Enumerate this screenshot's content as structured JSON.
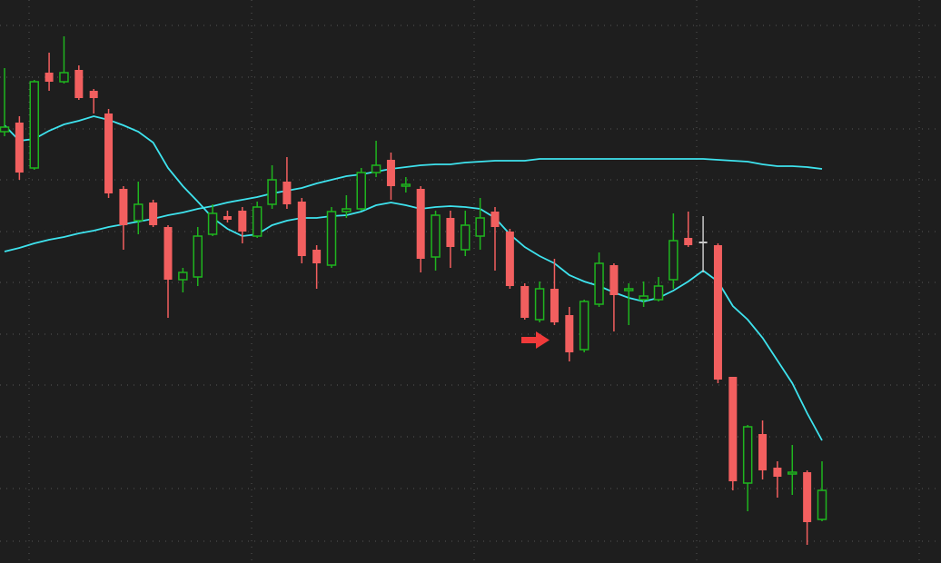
{
  "chart_data": {
    "type": "candlestick",
    "categories": [
      null,
      null,
      null,
      null,
      null,
      null,
      null,
      null,
      null,
      null,
      null,
      null,
      null,
      null,
      null,
      null,
      null,
      null,
      null,
      null,
      null,
      null,
      null,
      null,
      null,
      null,
      null,
      null,
      null,
      null,
      null,
      null,
      null,
      null,
      null,
      null,
      null,
      null,
      null,
      null,
      null,
      null,
      null,
      null,
      null,
      null,
      null,
      null,
      null,
      null,
      null,
      null,
      null,
      null,
      null,
      null
    ],
    "open": [
      475,
      485,
      435,
      540,
      530,
      543,
      520,
      495,
      412,
      377,
      397,
      370,
      312,
      315,
      362,
      382,
      388,
      360,
      395,
      420,
      398,
      345,
      328,
      387,
      390,
      430,
      444,
      415,
      412,
      337,
      380,
      345,
      360,
      387,
      365,
      305,
      268,
      302,
      273,
      235,
      285,
      328,
      300,
      290,
      290,
      312,
      358,
      354,
      350,
      205,
      88,
      142,
      105,
      98,
      100,
      48
    ],
    "high": [
      545,
      492,
      532,
      562,
      580,
      548,
      522,
      500,
      415,
      420,
      400,
      372,
      325,
      370,
      395,
      388,
      392,
      398,
      438,
      447,
      402,
      350,
      392,
      405,
      435,
      465,
      452,
      425,
      415,
      388,
      388,
      388,
      402,
      392,
      368,
      308,
      310,
      335,
      282,
      290,
      342,
      330,
      308,
      310,
      315,
      385,
      387,
      382,
      352,
      205,
      152,
      157,
      112,
      130,
      102,
      112
    ],
    "low": [
      470,
      422,
      433,
      520,
      528,
      510,
      495,
      402,
      345,
      362,
      370,
      270,
      298,
      305,
      360,
      375,
      352,
      358,
      390,
      390,
      330,
      302,
      325,
      380,
      388,
      425,
      400,
      408,
      320,
      322,
      325,
      338,
      345,
      322,
      302,
      268,
      265,
      262,
      222,
      232,
      282,
      255,
      262,
      282,
      288,
      302,
      348,
      320,
      198,
      80,
      57,
      92,
      72,
      75,
      20,
      46
    ],
    "close": [
      480,
      430,
      530,
      530,
      540,
      512,
      512,
      407,
      372,
      395,
      372,
      312,
      320,
      360,
      385,
      378,
      365,
      392,
      422,
      395,
      338,
      330,
      387,
      390,
      430,
      438,
      415,
      417,
      335,
      383,
      348,
      372,
      380,
      370,
      305,
      270,
      302,
      265,
      232,
      288,
      330,
      295,
      302,
      294,
      305,
      355,
      350,
      354,
      202,
      90,
      150,
      102,
      95,
      100,
      45,
      80
    ],
    "ylim": [
      0,
      620
    ],
    "colors": {
      "up": "#1fb51f",
      "down": "#f25f5f",
      "flat": "#c8c8c8"
    },
    "lines": [
      {
        "color": "#3ee3ee",
        "values": [
          482,
          465,
          467,
          476,
          483,
          487,
          492,
          488,
          482,
          475,
          463,
          435,
          415,
          398,
          380,
          368,
          360,
          362,
          372,
          377,
          380,
          380,
          382,
          383,
          387,
          394,
          397,
          394,
          390,
          392,
          393,
          392,
          390,
          380,
          362,
          348,
          338,
          330,
          317,
          310,
          305,
          298,
          292,
          288,
          292,
          300,
          310,
          322,
          310,
          283,
          268,
          248,
          223,
          198,
          165,
          135
        ]
      },
      {
        "color": "#3ee3ee",
        "values": [
          343,
          347,
          352,
          356,
          359,
          363,
          366,
          370,
          373,
          376,
          379,
          383,
          386,
          390,
          393,
          397,
          400,
          403,
          407,
          410,
          413,
          418,
          422,
          426,
          428,
          431,
          434,
          436,
          438,
          439,
          439,
          441,
          442,
          443,
          443,
          443,
          445,
          445,
          445,
          445,
          445,
          445,
          445,
          445,
          445,
          445,
          445,
          445,
          444,
          443,
          442,
          439,
          437,
          437,
          436,
          434
        ]
      }
    ]
  }
}
